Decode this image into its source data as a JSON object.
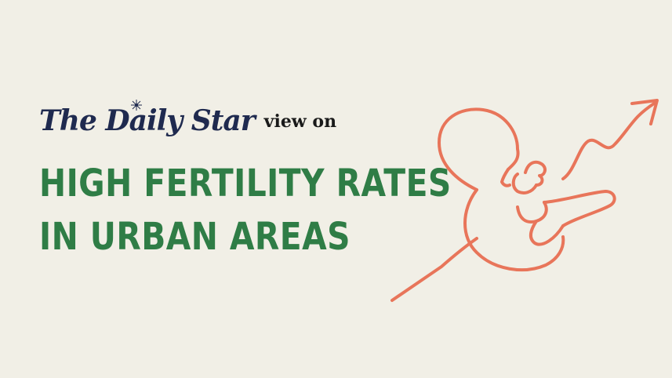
{
  "brand": {
    "logo_text": "The Daily Star",
    "view_on": "view on"
  },
  "headline": {
    "line1": "HIGH FERTILITY RATES",
    "line2": "IN URBAN AREAS"
  },
  "colors": {
    "background": "#f1efe6",
    "headline": "#2f7d46",
    "logo": "#1f2a4f",
    "illustration": "#e8755a"
  },
  "icons": {
    "illustration": "fetus-rising-arrow-icon",
    "logo_mark": "star-icon"
  }
}
